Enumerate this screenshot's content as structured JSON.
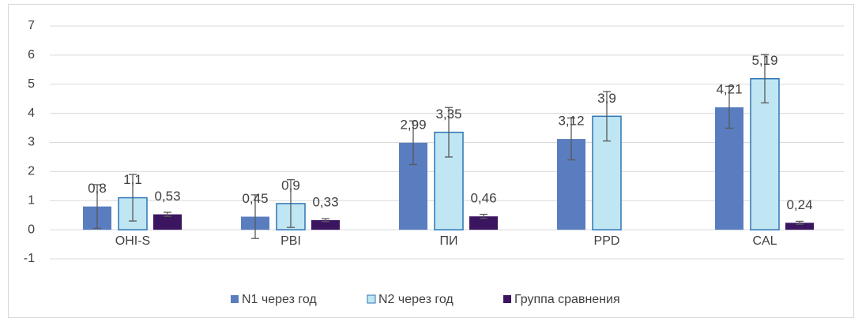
{
  "chart_data": {
    "type": "bar",
    "categories": [
      "OHI-S",
      "PBI",
      "ПИ",
      "PPD",
      "CAL"
    ],
    "series": [
      {
        "name": "N1 через год",
        "color": "#5a7dbf",
        "values": [
          0.8,
          0.45,
          2.99,
          3.12,
          4.21
        ],
        "value_labels": [
          "0,8",
          "0,45",
          "2,99",
          "3,12",
          "4,21"
        ],
        "errors": [
          0.75,
          0.75,
          0.75,
          0.72,
          0.72
        ]
      },
      {
        "name": "N2 через год",
        "color": "#bfe6f2",
        "values": [
          1.1,
          0.9,
          3.35,
          3.9,
          5.19
        ],
        "value_labels": [
          "1,1",
          "0,9",
          "3,35",
          "3,9",
          "5,19"
        ],
        "errors": [
          0.8,
          0.82,
          0.85,
          0.85,
          0.83
        ]
      },
      {
        "name": "Группа сравнения",
        "color": "#3b1560",
        "values": [
          0.53,
          0.33,
          0.46,
          null,
          0.24
        ],
        "value_labels": [
          "0,53",
          "0,33",
          "0,46",
          null,
          "0,24"
        ],
        "errors": [
          0.07,
          0.05,
          0.07,
          null,
          0.05
        ]
      }
    ],
    "ylim": [
      -1,
      7
    ],
    "yticks": [
      -1,
      0,
      1,
      2,
      3,
      4,
      5,
      6,
      7
    ],
    "grid": true,
    "legend": "bottom"
  }
}
